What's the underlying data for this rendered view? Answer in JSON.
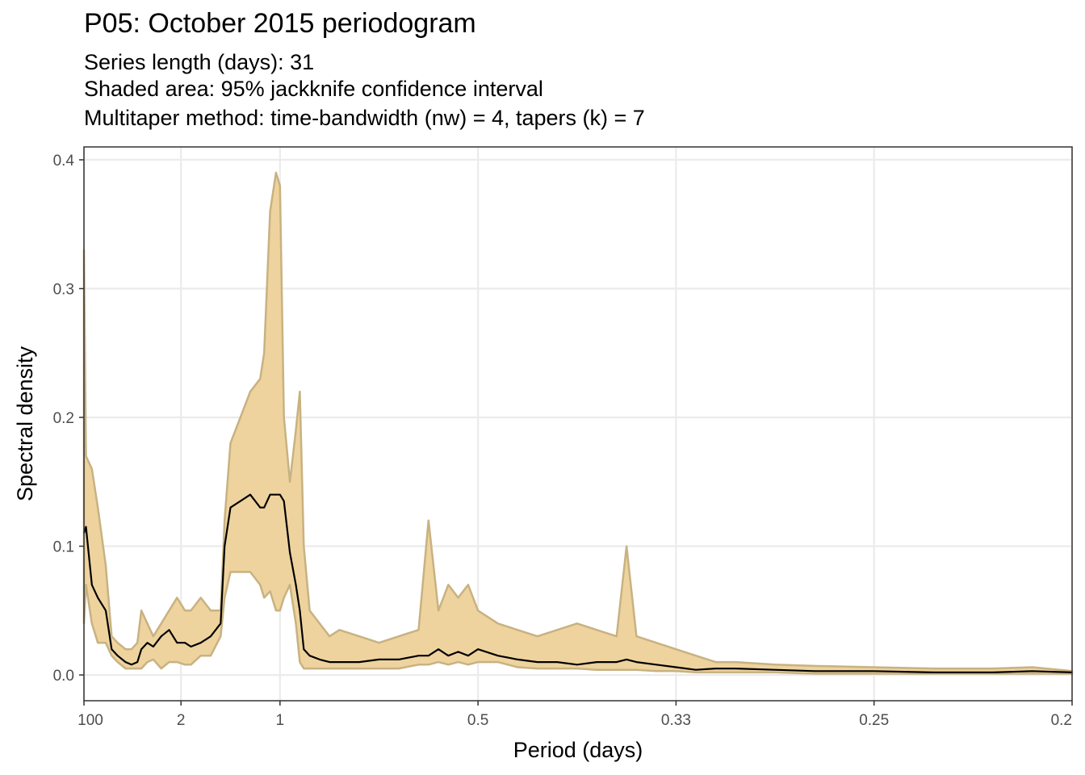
{
  "chart_data": {
    "type": "area",
    "title": "P05: October 2015 periodogram",
    "subtitle": [
      "Series length (days): 31",
      "Shaded area: 95% jackknife confidence interval",
      "Multitaper method: time-bandwidth (nw) = 4, tapers (k) = 7"
    ],
    "xlabel": "Period (days)",
    "ylabel": "Spectral density",
    "xaxis_scale": "frequency (1/period), labeled as period",
    "xlim_frequency": [
      0.01,
      5.0
    ],
    "ylim": [
      -0.02,
      0.41
    ],
    "x_ticks": [
      {
        "label": "100",
        "freq": 0.01
      },
      {
        "label": "2",
        "freq": 0.5
      },
      {
        "label": "1",
        "freq": 1.0
      },
      {
        "label": "0.5",
        "freq": 2.0
      },
      {
        "label": "0.33",
        "freq": 3.0
      },
      {
        "label": "0.25",
        "freq": 4.0
      },
      {
        "label": "0.2",
        "freq": 5.0
      }
    ],
    "y_ticks": [
      {
        "label": "0.0",
        "value": 0.0
      },
      {
        "label": "0.1",
        "value": 0.1
      },
      {
        "label": "0.2",
        "value": 0.2
      },
      {
        "label": "0.3",
        "value": 0.3
      },
      {
        "label": "0.4",
        "value": 0.4
      }
    ],
    "grid": true,
    "colors": {
      "band_fill": "#eed39e",
      "band_edge": "#c8b281",
      "line": "#000000",
      "grid": "#ebebeb",
      "panel_border": "#333333"
    },
    "series": [
      {
        "x_frequency": [
          0.01,
          0.02,
          0.05,
          0.08,
          0.12,
          0.15,
          0.18,
          0.22,
          0.25,
          0.28,
          0.3,
          0.33,
          0.36,
          0.4,
          0.44,
          0.48,
          0.52,
          0.55,
          0.6,
          0.65,
          0.7,
          0.72,
          0.75,
          0.8,
          0.85,
          0.9,
          0.92,
          0.95,
          0.98,
          1.0,
          1.02,
          1.05,
          1.08,
          1.1,
          1.12,
          1.15,
          1.2,
          1.25,
          1.3,
          1.4,
          1.5,
          1.6,
          1.7,
          1.75,
          1.8,
          1.85,
          1.9,
          1.95,
          2.0,
          2.1,
          2.2,
          2.3,
          2.4,
          2.5,
          2.6,
          2.7,
          2.75,
          2.8,
          2.9,
          3.0,
          3.1,
          3.2,
          3.3,
          3.5,
          3.7,
          4.0,
          4.3,
          4.6,
          4.8,
          5.0
        ],
        "lower": [
          0.04,
          0.07,
          0.04,
          0.025,
          0.025,
          0.015,
          0.01,
          0.005,
          0.005,
          0.005,
          0.005,
          0.01,
          0.012,
          0.005,
          0.01,
          0.01,
          0.008,
          0.008,
          0.015,
          0.015,
          0.03,
          0.06,
          0.08,
          0.08,
          0.08,
          0.07,
          0.06,
          0.065,
          0.05,
          0.05,
          0.06,
          0.07,
          0.04,
          0.01,
          0.005,
          0.005,
          0.005,
          0.005,
          0.005,
          0.005,
          0.005,
          0.005,
          0.008,
          0.008,
          0.01,
          0.008,
          0.01,
          0.008,
          0.01,
          0.01,
          0.006,
          0.005,
          0.005,
          0.005,
          0.004,
          0.004,
          0.004,
          0.004,
          0.003,
          0.003,
          0.002,
          0.002,
          0.002,
          0.002,
          0.001,
          0.001,
          0.001,
          0.001,
          0.001,
          0.001
        ],
        "upper": [
          0.33,
          0.17,
          0.16,
          0.13,
          0.085,
          0.03,
          0.025,
          0.02,
          0.02,
          0.025,
          0.05,
          0.04,
          0.03,
          0.04,
          0.05,
          0.06,
          0.05,
          0.05,
          0.06,
          0.05,
          0.05,
          0.12,
          0.18,
          0.2,
          0.22,
          0.23,
          0.25,
          0.36,
          0.39,
          0.38,
          0.2,
          0.15,
          0.19,
          0.22,
          0.1,
          0.05,
          0.04,
          0.03,
          0.035,
          0.03,
          0.025,
          0.03,
          0.035,
          0.12,
          0.05,
          0.07,
          0.06,
          0.07,
          0.05,
          0.04,
          0.035,
          0.03,
          0.035,
          0.04,
          0.035,
          0.03,
          0.1,
          0.03,
          0.025,
          0.02,
          0.015,
          0.01,
          0.01,
          0.008,
          0.007,
          0.006,
          0.005,
          0.005,
          0.006,
          0.003
        ],
        "estimate": [
          0.11,
          0.115,
          0.07,
          0.06,
          0.05,
          0.02,
          0.015,
          0.01,
          0.008,
          0.01,
          0.02,
          0.025,
          0.022,
          0.03,
          0.035,
          0.025,
          0.025,
          0.022,
          0.025,
          0.03,
          0.04,
          0.1,
          0.13,
          0.135,
          0.14,
          0.13,
          0.13,
          0.14,
          0.14,
          0.14,
          0.135,
          0.095,
          0.07,
          0.05,
          0.02,
          0.015,
          0.012,
          0.01,
          0.01,
          0.01,
          0.012,
          0.012,
          0.015,
          0.015,
          0.02,
          0.015,
          0.018,
          0.015,
          0.02,
          0.015,
          0.012,
          0.01,
          0.01,
          0.008,
          0.01,
          0.01,
          0.012,
          0.01,
          0.008,
          0.006,
          0.004,
          0.005,
          0.005,
          0.004,
          0.003,
          0.003,
          0.002,
          0.002,
          0.003,
          0.002
        ]
      }
    ]
  }
}
